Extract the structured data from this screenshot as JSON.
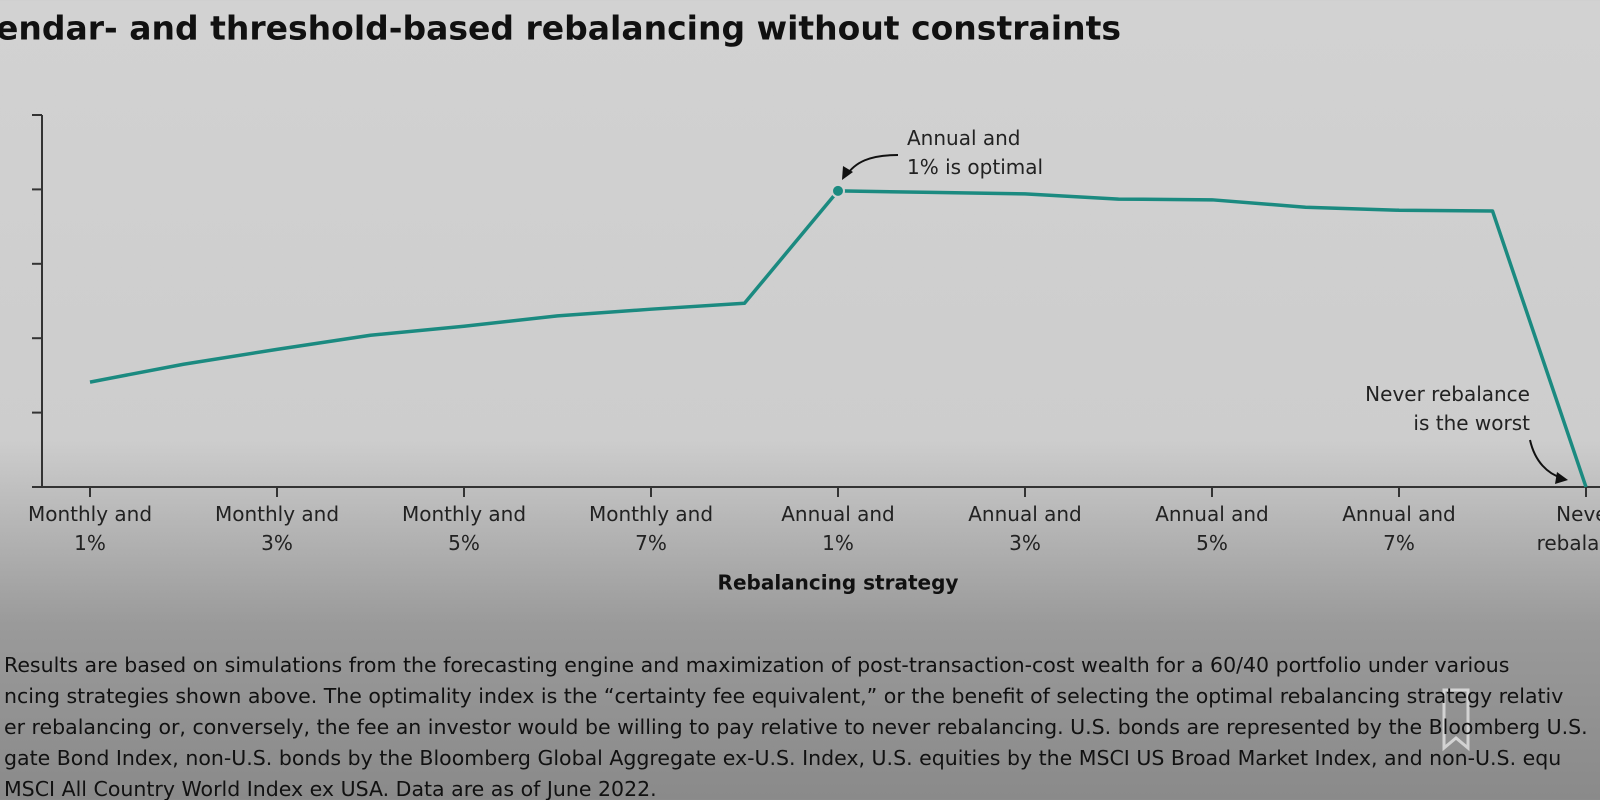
{
  "chart_data": {
    "type": "line",
    "title": "endar- and threshold-based rebalancing without constraints",
    "x_label": "Rebalancing strategy",
    "categories": [
      "Monthly and 1%",
      null,
      "Monthly and 3%",
      null,
      "Monthly and 5%",
      null,
      "Monthly and 7%",
      null,
      "Annual and 1%",
      null,
      "Annual and 3%",
      null,
      "Annual and 5%",
      null,
      "Annual and 7%",
      null,
      "Never rebalance"
    ],
    "series": [
      {
        "color": "#1b8a80",
        "values": [
          1.41,
          1.65,
          1.85,
          2.04,
          2.16,
          2.3,
          2.39,
          2.47,
          3.98,
          3.96,
          3.94,
          3.87,
          3.86,
          3.76,
          3.72,
          3.71,
          0
        ]
      }
    ],
    "ylim": [
      0,
      5
    ],
    "yticks": [
      0,
      1,
      2,
      3,
      4,
      5
    ],
    "annotations": [
      {
        "lines": [
          "Annual and",
          "1% is optimal"
        ]
      },
      {
        "lines": [
          "Never rebalance",
          "is the worst"
        ]
      }
    ]
  },
  "footnote": {
    "lines": [
      "Results are based on simulations from the forecasting engine and maximization of post-transaction-cost wealth for a 60/40 portfolio under various",
      "ncing strategies shown above. The optimality index is the “certainty fee equivalent,” or the benefit of selecting the optimal rebalancing strategy relativ",
      "er rebalancing or, conversely, the fee an investor would be willing to pay relative to never rebalancing. U.S. bonds are represented by the Bloomberg U.S.",
      "gate Bond Index, non-U.S. bonds by the Bloomberg Global Aggregate ex-U.S. Index, U.S. equities by the MSCI US Broad Market Index, and non-U.S. equ",
      "MSCI All Country World Index ex USA. Data are as of June 2022."
    ]
  }
}
